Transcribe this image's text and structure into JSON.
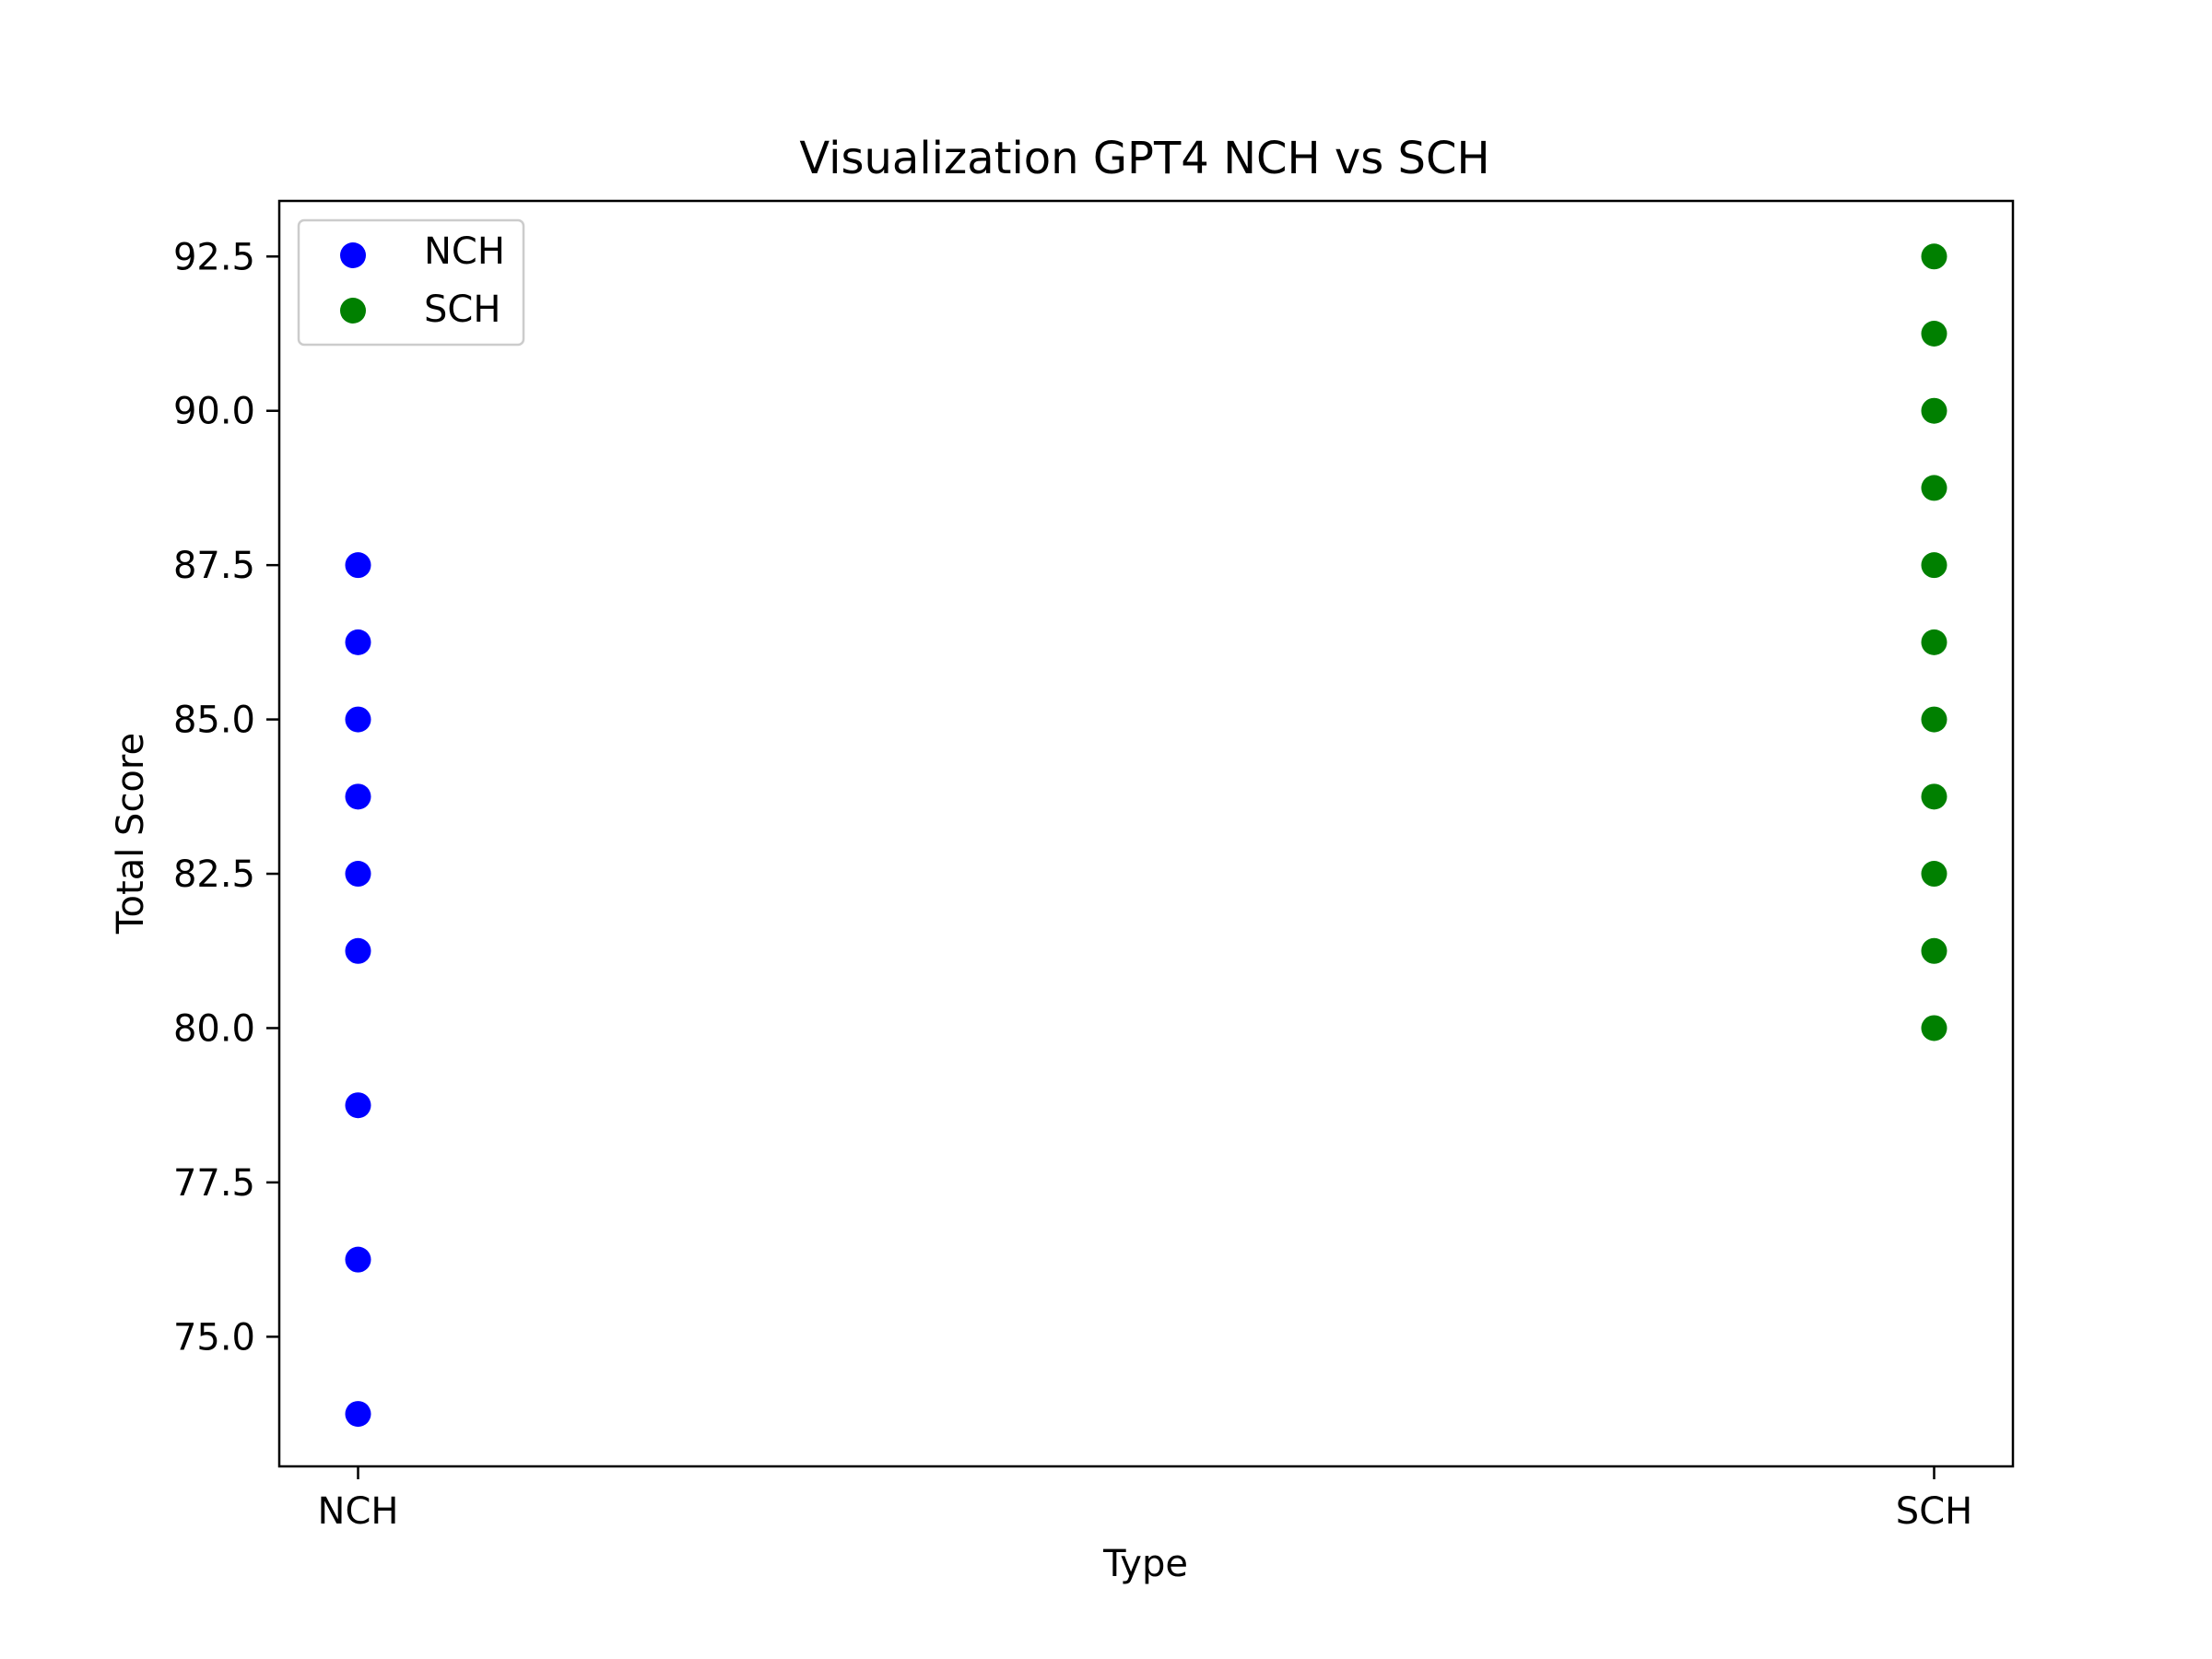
{
  "chart_data": {
    "type": "scatter",
    "title": "Visualization GPT4 NCH vs SCH",
    "xlabel": "Type",
    "ylabel": "Total Score",
    "categories": [
      "NCH",
      "SCH"
    ],
    "ylim": [
      72.9,
      93.4
    ],
    "yticks": [
      "75.0",
      "77.5",
      "80.0",
      "82.5",
      "85.0",
      "87.5",
      "90.0",
      "92.5"
    ],
    "grid": false,
    "legend_position": "upper-left",
    "series": [
      {
        "name": "NCH",
        "color": "#0000ff",
        "category": "NCH",
        "values": [
          73.75,
          76.25,
          78.75,
          81.25,
          82.5,
          83.75,
          85.0,
          86.25,
          87.5
        ]
      },
      {
        "name": "SCH",
        "color": "#008000",
        "category": "SCH",
        "values": [
          80.0,
          81.25,
          82.5,
          83.75,
          85.0,
          86.25,
          87.5,
          88.75,
          90.0,
          91.25,
          92.5
        ]
      }
    ]
  }
}
